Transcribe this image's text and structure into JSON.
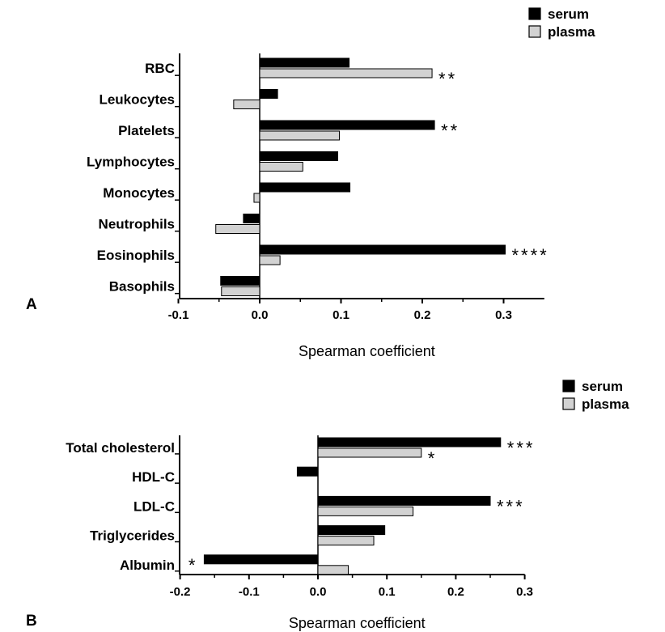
{
  "chart_data": [
    {
      "type": "bar",
      "orientation": "horizontal",
      "panel_label": "A",
      "xlabel": "Spearman coefficient",
      "xlim": [
        -0.1,
        0.35
      ],
      "xticks": [
        "-0.1",
        "0.0",
        "0.1",
        "0.2",
        "0.3"
      ],
      "categories": [
        "RBC",
        "Leukocytes",
        "Platelets",
        "Lymphocytes",
        "Monocytes",
        "Neutrophils",
        "Eosinophils",
        "Basophils"
      ],
      "legend": {
        "position": "top-right",
        "entries": [
          "serum",
          "plasma"
        ]
      },
      "series": [
        {
          "name": "serum",
          "color": "#000000",
          "values": [
            0.11,
            0.022,
            0.215,
            0.096,
            0.111,
            -0.02,
            0.302,
            -0.048
          ]
        },
        {
          "name": "plasma",
          "color": "#d2d2d2",
          "values": [
            0.212,
            -0.032,
            0.098,
            0.053,
            -0.007,
            -0.054,
            0.025,
            -0.047
          ]
        }
      ],
      "annotations": [
        {
          "category": "RBC",
          "series": "plasma",
          "text": "**"
        },
        {
          "category": "Platelets",
          "series": "serum",
          "text": "**"
        },
        {
          "category": "Eosinophils",
          "series": "serum",
          "text": "****"
        }
      ]
    },
    {
      "type": "bar",
      "orientation": "horizontal",
      "panel_label": "B",
      "xlabel": "Spearman coefficient",
      "xlim": [
        -0.2,
        0.3
      ],
      "xticks": [
        "-0.2",
        "-0.1",
        "0.0",
        "0.1",
        "0.2",
        "0.3"
      ],
      "categories": [
        "Total cholesterol",
        "HDL-C",
        "LDL-C",
        "Triglycerides",
        "Albumin"
      ],
      "legend": {
        "position": "top-right",
        "entries": [
          "serum",
          "plasma"
        ]
      },
      "series": [
        {
          "name": "serum",
          "color": "#000000",
          "values": [
            0.265,
            -0.03,
            0.25,
            0.097,
            -0.165
          ]
        },
        {
          "name": "plasma",
          "color": "#d2d2d2",
          "values": [
            0.15,
            0,
            0.138,
            0.081,
            0.044
          ]
        }
      ],
      "annotations": [
        {
          "category": "Total cholesterol",
          "series": "serum",
          "text": "***"
        },
        {
          "category": "Total cholesterol",
          "series": "plasma",
          "text": "*"
        },
        {
          "category": "LDL-C",
          "series": "serum",
          "text": "***"
        },
        {
          "category": "Albumin",
          "series": "serum",
          "text": "*"
        }
      ]
    }
  ]
}
